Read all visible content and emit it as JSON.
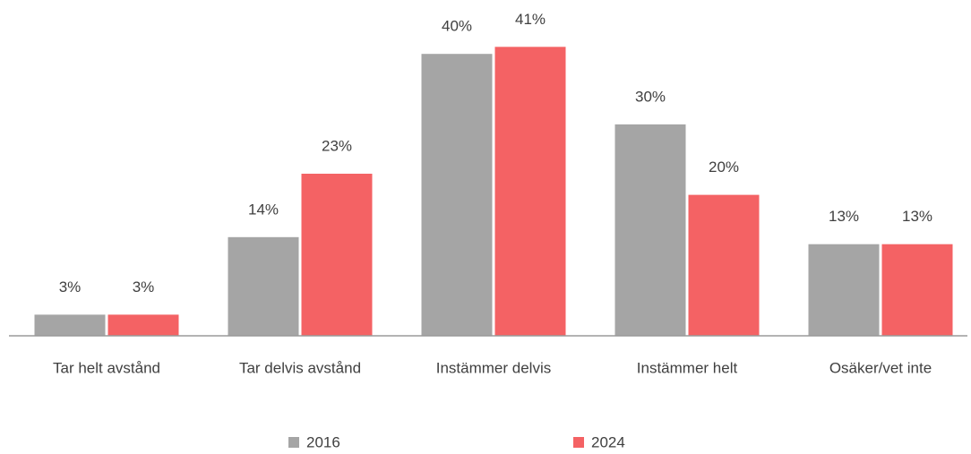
{
  "chart_data": {
    "type": "bar",
    "categories": [
      "Tar helt avstånd",
      "Tar delvis avstånd",
      "Instämmer delvis",
      "Instämmer helt",
      "Osäker/vet inte"
    ],
    "series": [
      {
        "name": "2016",
        "color": "#a5a5a5",
        "values": [
          3,
          14,
          40,
          30,
          13
        ],
        "value_labels": [
          "3%",
          "14%",
          "40%",
          "30%",
          "13%"
        ]
      },
      {
        "name": "2024",
        "color": "#f46264",
        "values": [
          3,
          23,
          41,
          20,
          13
        ],
        "value_labels": [
          "3%",
          "23%",
          "41%",
          "20%",
          "13%"
        ]
      }
    ]
  }
}
